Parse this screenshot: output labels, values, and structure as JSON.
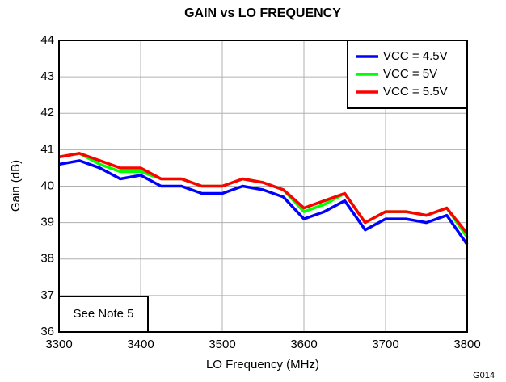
{
  "chart_data": {
    "type": "line",
    "title": "GAIN vs LO FREQUENCY",
    "x_label": "LO Frequency (MHz)",
    "y_label": "Gain (dB)",
    "annotations": [
      "See Note 5",
      "G014"
    ],
    "x": [
      3300,
      3325,
      3350,
      3375,
      3400,
      3425,
      3450,
      3475,
      3500,
      3525,
      3550,
      3575,
      3600,
      3625,
      3650,
      3675,
      3700,
      3725,
      3750,
      3775,
      3800
    ],
    "series": [
      {
        "name": "VCC = 4.5V",
        "color": "#0000ff",
        "values": [
          40.6,
          40.7,
          40.5,
          40.2,
          40.3,
          40.0,
          40.0,
          39.8,
          39.8,
          40.0,
          39.9,
          39.7,
          39.1,
          39.3,
          39.6,
          38.8,
          39.1,
          39.1,
          39.0,
          39.2,
          38.4
        ]
      },
      {
        "name": "VCC = 5V",
        "color": "#00ff00",
        "values": [
          40.8,
          40.9,
          40.6,
          40.4,
          40.4,
          40.2,
          40.2,
          40.0,
          40.0,
          40.2,
          40.1,
          39.9,
          39.3,
          39.5,
          39.8,
          39.0,
          39.3,
          39.3,
          39.2,
          39.4,
          38.6
        ]
      },
      {
        "name": "VCC = 5.5V",
        "color": "#ff0000",
        "values": [
          40.8,
          40.9,
          40.7,
          40.5,
          40.5,
          40.2,
          40.2,
          40.0,
          40.0,
          40.2,
          40.1,
          39.9,
          39.4,
          39.6,
          39.8,
          39.0,
          39.3,
          39.3,
          39.2,
          39.4,
          38.7
        ]
      }
    ],
    "xlim": [
      3300,
      3800
    ],
    "xticks": [
      3300,
      3400,
      3500,
      3600,
      3700,
      3800
    ],
    "ylim": [
      36,
      44
    ],
    "yticks": [
      36,
      37,
      38,
      39,
      40,
      41,
      42,
      43,
      44
    ],
    "grid": true,
    "legend": "top-right"
  }
}
